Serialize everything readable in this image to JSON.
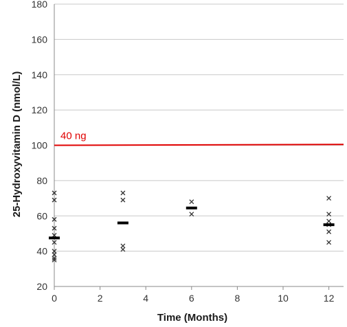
{
  "chart_data": {
    "type": "scatter",
    "title": "",
    "xlabel": "Time (Months)",
    "ylabel": "25-Hydroxyvitamin D (nmol/L)",
    "xlim": [
      0,
      13
    ],
    "ylim": [
      20,
      180
    ],
    "x_ticks": [
      0,
      2,
      4,
      6,
      8,
      10,
      12
    ],
    "y_ticks": [
      20,
      40,
      60,
      80,
      100,
      120,
      140,
      160,
      180
    ],
    "grid": "horizontal",
    "legend": "none",
    "points": [
      {
        "x": 0,
        "y": 73
      },
      {
        "x": 0,
        "y": 69
      },
      {
        "x": 0,
        "y": 58
      },
      {
        "x": 0,
        "y": 53
      },
      {
        "x": 0,
        "y": 49
      },
      {
        "x": 0,
        "y": 45
      },
      {
        "x": 0,
        "y": 40
      },
      {
        "x": 0,
        "y": 38
      },
      {
        "x": 0,
        "y": 36
      },
      {
        "x": 0,
        "y": 35
      },
      {
        "x": 3,
        "y": 73
      },
      {
        "x": 3,
        "y": 69
      },
      {
        "x": 3,
        "y": 43
      },
      {
        "x": 3,
        "y": 41
      },
      {
        "x": 6,
        "y": 68
      },
      {
        "x": 6,
        "y": 61
      },
      {
        "x": 12,
        "y": 70
      },
      {
        "x": 12,
        "y": 61
      },
      {
        "x": 12,
        "y": 57
      },
      {
        "x": 12,
        "y": 55
      },
      {
        "x": 12,
        "y": 51
      },
      {
        "x": 12,
        "y": 45
      }
    ],
    "means": [
      {
        "x": 0,
        "y": 47.5
      },
      {
        "x": 3,
        "y": 56
      },
      {
        "x": 6,
        "y": 64.5
      },
      {
        "x": 12,
        "y": 55
      }
    ],
    "reference_line": {
      "y": 100,
      "y_end": 100.5,
      "label": "40 ng",
      "color": "#e00000"
    },
    "colors": {
      "marker": "#333333",
      "mean": "#000000",
      "grid": "#c8c8c8",
      "axis": "#888888"
    }
  }
}
